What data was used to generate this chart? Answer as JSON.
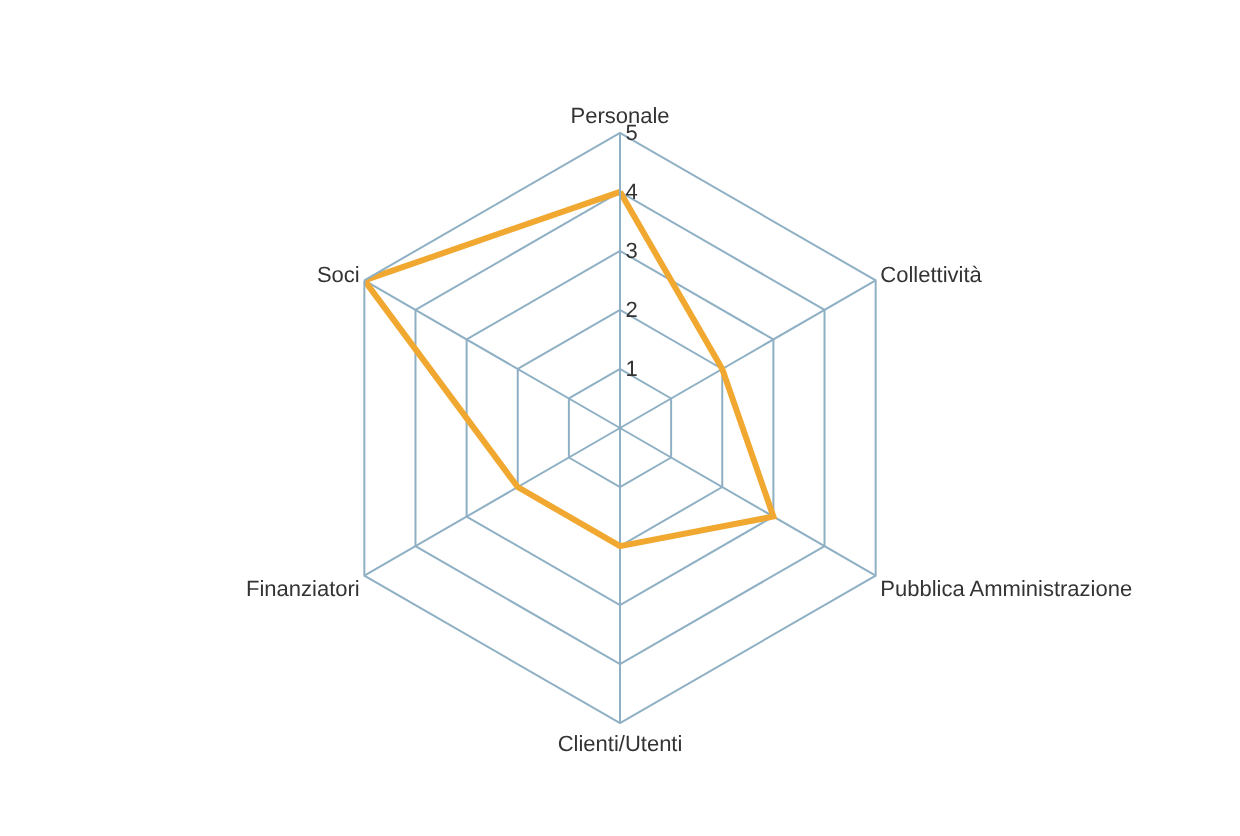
{
  "chart_data": {
    "type": "radar",
    "categories": [
      "Personale",
      "Collettività",
      "Pubblica Amministrazione",
      "Clienti/Utenti",
      "Finanziatori",
      "Soci"
    ],
    "series": [
      {
        "color": "#f0a830",
        "values": [
          4,
          2,
          3,
          2,
          2,
          5
        ]
      }
    ],
    "ylim": [
      0,
      5
    ],
    "yticks": [
      1,
      2,
      3,
      4,
      5
    ],
    "grid": true,
    "marker": "none",
    "line_style": "solid"
  }
}
